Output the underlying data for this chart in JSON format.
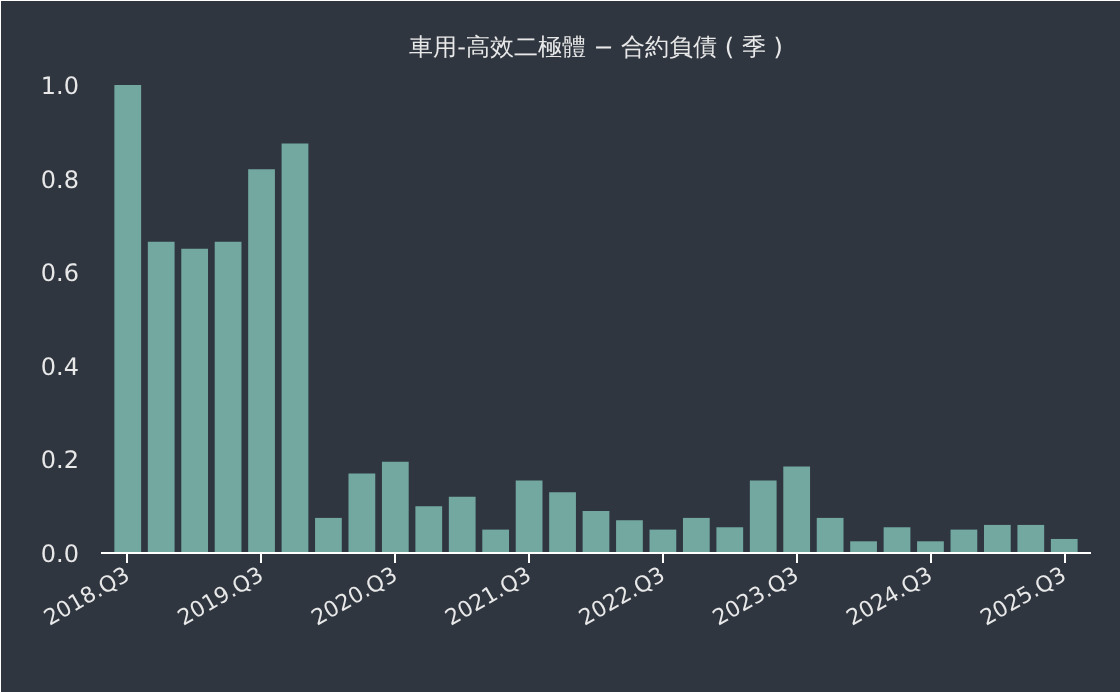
{
  "chart_data": {
    "type": "bar",
    "title": "車用-高效二極體 − 合約負債 ( 季 )",
    "categories": [
      "2018.Q3",
      null,
      null,
      null,
      "2019.Q3",
      null,
      null,
      null,
      "2020.Q3",
      null,
      null,
      null,
      "2021.Q3",
      null,
      null,
      null,
      "2022.Q3",
      null,
      null,
      null,
      "2023.Q3",
      null,
      null,
      null,
      "2024.Q3",
      null,
      null,
      null,
      "2025.Q3"
    ],
    "values": [
      1.0,
      0.665,
      0.65,
      0.665,
      0.82,
      0.875,
      0.075,
      0.17,
      0.195,
      0.1,
      0.12,
      0.05,
      0.155,
      0.13,
      0.09,
      0.07,
      0.05,
      0.075,
      0.055,
      0.155,
      0.185,
      0.075,
      0.025,
      0.055,
      0.025,
      0.05,
      0.06,
      0.06,
      0.03
    ],
    "color": "#72a8a0",
    "ylim": [
      0,
      1.03
    ],
    "yticks": [
      {
        "value": 0,
        "label": "0.0"
      },
      {
        "value": 0.2,
        "label": "0.2"
      },
      {
        "value": 0.4,
        "label": "0.4"
      },
      {
        "value": 0.6,
        "label": "0.6"
      },
      {
        "value": 0.8,
        "label": "0.8"
      },
      {
        "value": 1.0,
        "label": "1.0"
      }
    ],
    "grid": false
  }
}
